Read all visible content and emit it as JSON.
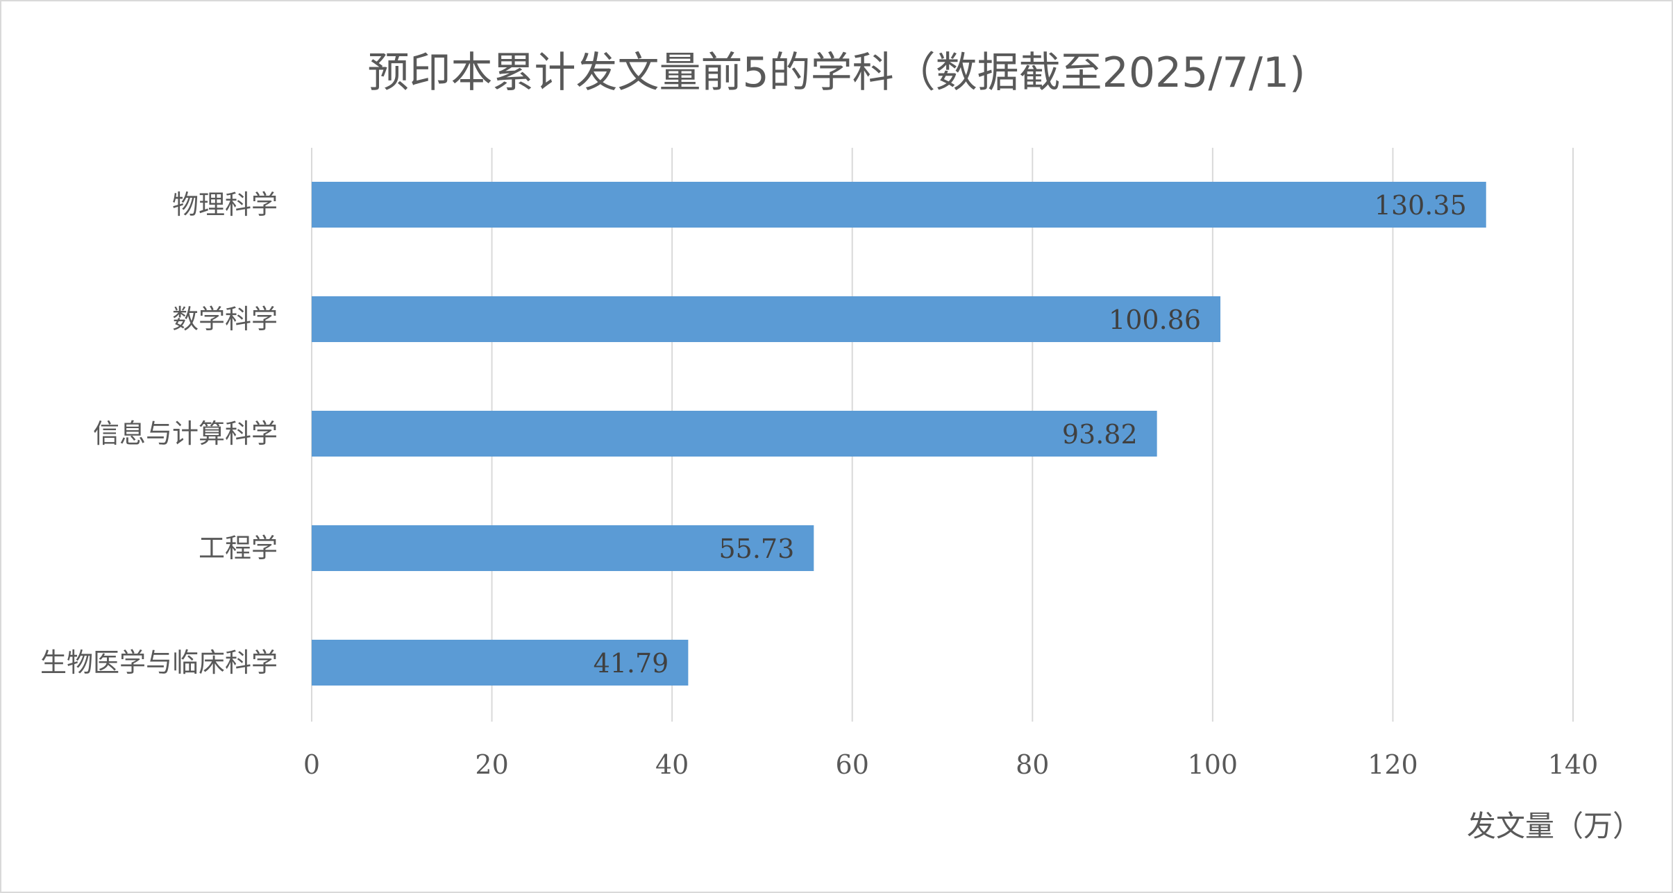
{
  "chart_data": {
    "type": "bar",
    "orientation": "horizontal",
    "title": "预印本累计发文量前5的学科（数据截至2025/7/1)",
    "xlabel": "发文量（万）",
    "ylabel": "",
    "categories": [
      "物理科学",
      "数学科学",
      "信息与计算科学",
      "工程学",
      "生物医学与临床科学"
    ],
    "values": [
      130.35,
      100.86,
      93.82,
      55.73,
      41.79
    ],
    "value_labels": [
      "130.35",
      "100.86",
      "93.82",
      "55.73",
      "41.79"
    ],
    "xlim": [
      0,
      140
    ],
    "xticks": [
      0,
      20,
      40,
      60,
      80,
      100,
      120,
      140
    ],
    "grid": "vertical",
    "bar_color": "#5b9bd5",
    "grid_color": "#d9d9d9",
    "legend": "none"
  }
}
